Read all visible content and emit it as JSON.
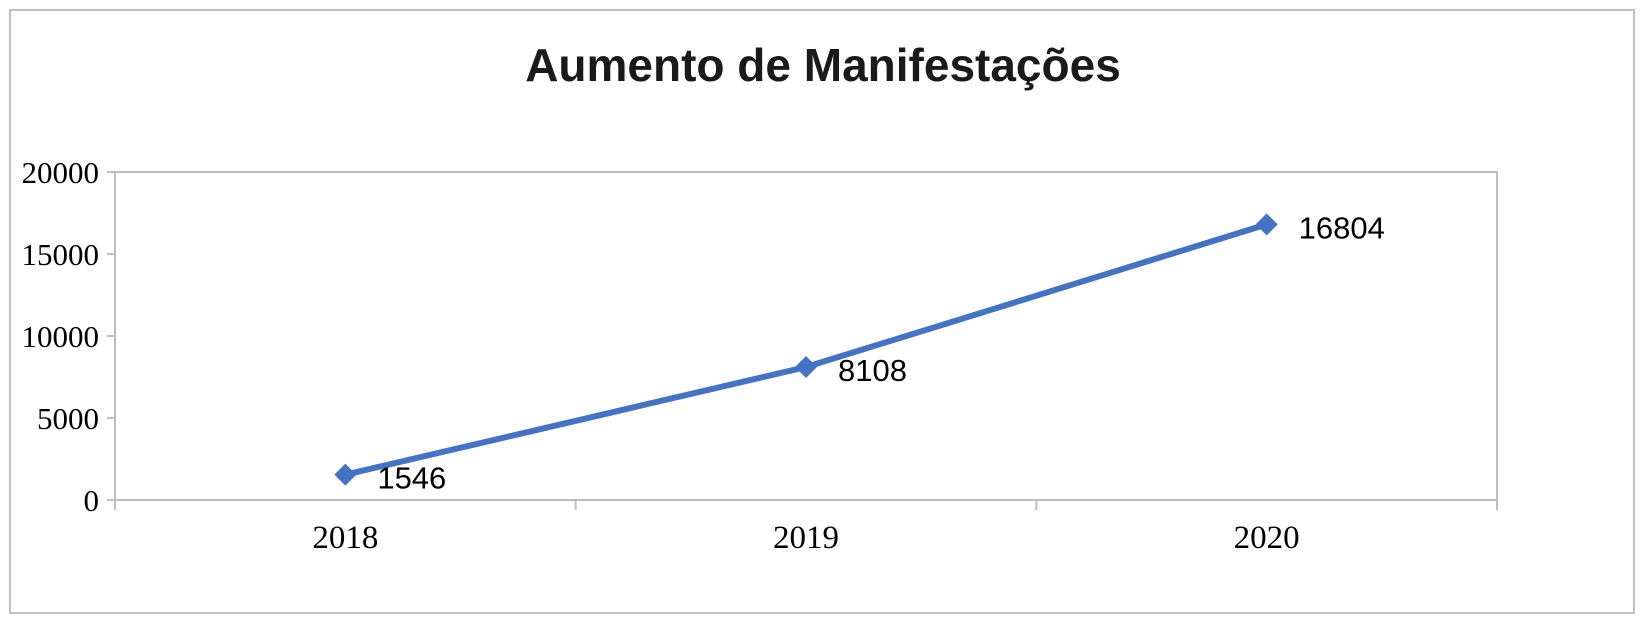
{
  "chart": {
    "colors": {
      "line": "#4472C4",
      "axis": "#BFBFBF",
      "text": "#000000"
    }
  },
  "chart_data": {
    "type": "line",
    "title": "Aumento de Manifestações",
    "categories": [
      "2018",
      "2019",
      "2020"
    ],
    "values": [
      1546,
      8108,
      16804
    ],
    "data_labels": [
      "1546",
      "8108",
      "16804"
    ],
    "xlabel": "",
    "ylabel": "",
    "ylim": [
      0,
      20000
    ],
    "yticks": [
      0,
      5000,
      10000,
      15000,
      20000
    ],
    "ytick_labels": [
      "0",
      "5000",
      "10000",
      "15000",
      "20000"
    ],
    "grid": false,
    "legend": "none",
    "marker": "diamond",
    "line_color": "#4472C4"
  }
}
